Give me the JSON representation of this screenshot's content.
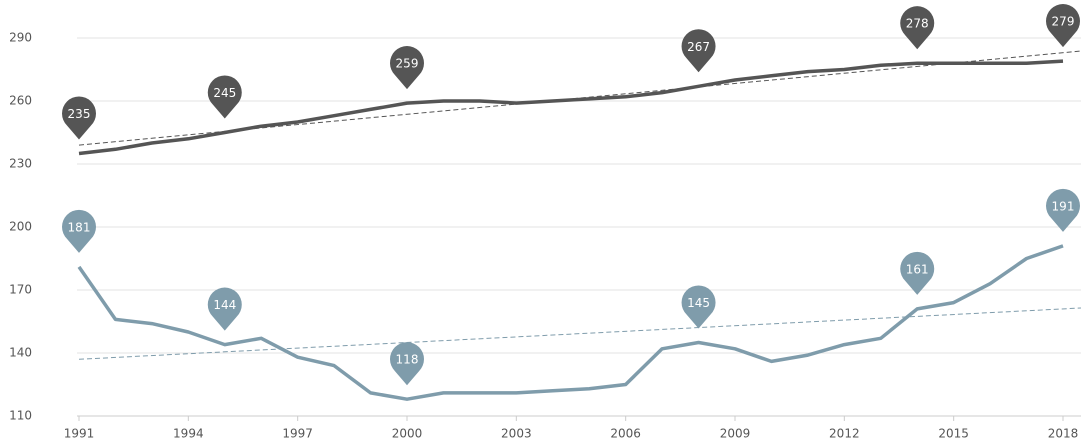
{
  "chart_data": {
    "type": "line",
    "x": [
      1991,
      1992,
      1993,
      1994,
      1995,
      1996,
      1997,
      1998,
      1999,
      2000,
      2001,
      2002,
      2003,
      2004,
      2005,
      2006,
      2007,
      2008,
      2009,
      2010,
      2011,
      2012,
      2013,
      2014,
      2015,
      2016,
      2017,
      2018
    ],
    "series": [
      {
        "color": "#555555",
        "values": [
          235,
          237,
          240,
          242,
          245,
          248,
          250,
          253,
          256,
          259,
          260,
          260,
          259,
          260,
          261,
          262,
          264,
          267,
          270,
          272,
          274,
          275,
          277,
          278,
          278,
          278,
          278,
          279
        ],
        "value_labels": [
          "235",
          null,
          null,
          null,
          "245",
          null,
          null,
          null,
          null,
          "259",
          null,
          null,
          null,
          null,
          null,
          null,
          null,
          "267",
          null,
          null,
          null,
          null,
          null,
          "278",
          null,
          null,
          null,
          "279"
        ],
        "trend": [
          239,
          283
        ]
      },
      {
        "color": "#7f9cab",
        "values": [
          181,
          156,
          154,
          150,
          144,
          147,
          138,
          134,
          121,
          118,
          121,
          121,
          121,
          122,
          123,
          125,
          142,
          145,
          142,
          136,
          139,
          144,
          147,
          161,
          164,
          173,
          185,
          191
        ],
        "value_labels": [
          "181",
          null,
          null,
          null,
          "144",
          null,
          null,
          null,
          null,
          "118",
          null,
          null,
          null,
          null,
          null,
          null,
          null,
          "145",
          null,
          null,
          null,
          null,
          null,
          "161",
          null,
          null,
          null,
          "191"
        ],
        "trend": [
          137,
          161
        ]
      }
    ],
    "xlim": [
      1991,
      2018
    ],
    "xticks": [
      1991,
      1994,
      1997,
      2000,
      2003,
      2006,
      2009,
      2012,
      2015,
      2018
    ],
    "ylim": [
      110,
      290
    ],
    "yticks": [
      110,
      140,
      170,
      200,
      230,
      260,
      290
    ],
    "grid": true
  }
}
